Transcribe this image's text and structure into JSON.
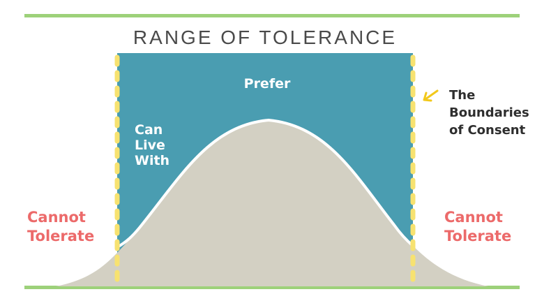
{
  "title": "RANGE OF TOLERANCE",
  "regions": {
    "prefer": "Prefer",
    "can_live_with": [
      "Can",
      "Live",
      "With"
    ],
    "cannot_tolerate_left": [
      "Cannot",
      "Tolerate"
    ],
    "cannot_tolerate_right": [
      "Cannot",
      "Tolerate"
    ]
  },
  "annotation": {
    "lines": [
      "The",
      "Boundaries",
      "of Consent"
    ],
    "icon": "arrow-icon"
  },
  "colors": {
    "accent_line": "#9dd17a",
    "teal_fill": "#4a9db1",
    "curve_fill": "#d3d0c3",
    "boundary_dash": "#f7e270",
    "arrow": "#f2c81a",
    "cannot_tolerate_text": "#ec6a6a"
  }
}
